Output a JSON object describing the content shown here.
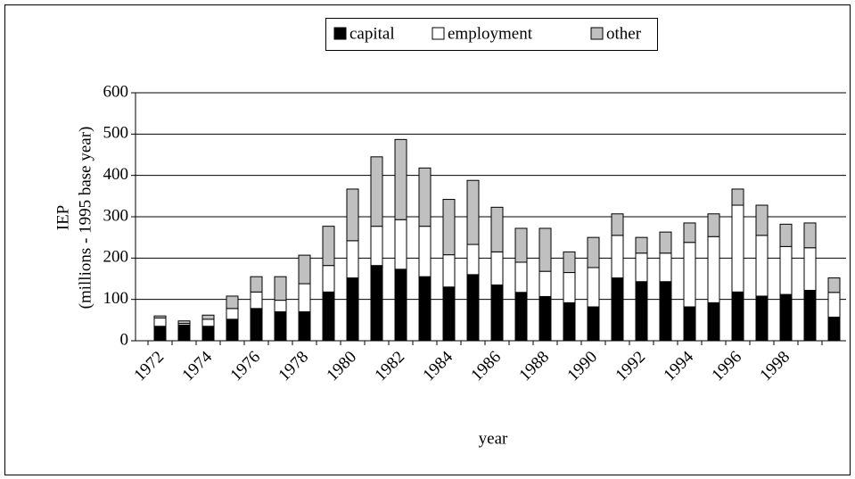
{
  "chart_data": {
    "type": "stacked-bar",
    "y_label": "IEP",
    "y_label_2": "(millions - 1995 base year)",
    "x_label": "year",
    "categories": [
      "1972",
      null,
      "1974",
      null,
      "1976",
      null,
      "1978",
      null,
      "1980",
      null,
      "1982",
      null,
      "1984",
      null,
      "1986",
      null,
      "1988",
      null,
      "1990",
      null,
      "1992",
      null,
      "1994",
      null,
      "1996",
      null,
      "1998",
      null,
      null
    ],
    "series": [
      {
        "name": "capital",
        "color": "#000000",
        "values": [
          35,
          38,
          35,
          52,
          78,
          70,
          70,
          118,
          152,
          182,
          173,
          155,
          130,
          160,
          135,
          117,
          107,
          92,
          82,
          152,
          143,
          143,
          82,
          92,
          118,
          108,
          112,
          122,
          57
        ]
      },
      {
        "name": "employment",
        "color": "#ffffff",
        "values": [
          20,
          4,
          17,
          26,
          40,
          28,
          68,
          64,
          90,
          95,
          120,
          122,
          78,
          73,
          80,
          73,
          61,
          73,
          95,
          103,
          69,
          69,
          156,
          160,
          210,
          147,
          116,
          103,
          60
        ]
      },
      {
        "name": "other",
        "color": "#c0c0c0",
        "values": [
          5,
          6,
          10,
          30,
          37,
          57,
          69,
          95,
          125,
          168,
          194,
          141,
          134,
          155,
          108,
          82,
          104,
          50,
          73,
          52,
          38,
          51,
          47,
          55,
          39,
          73,
          54,
          60,
          35
        ]
      }
    ],
    "ylim": [
      0,
      600
    ],
    "yticks": [
      0,
      100,
      200,
      300,
      400,
      500,
      600
    ],
    "grid": true,
    "legend": "top"
  }
}
